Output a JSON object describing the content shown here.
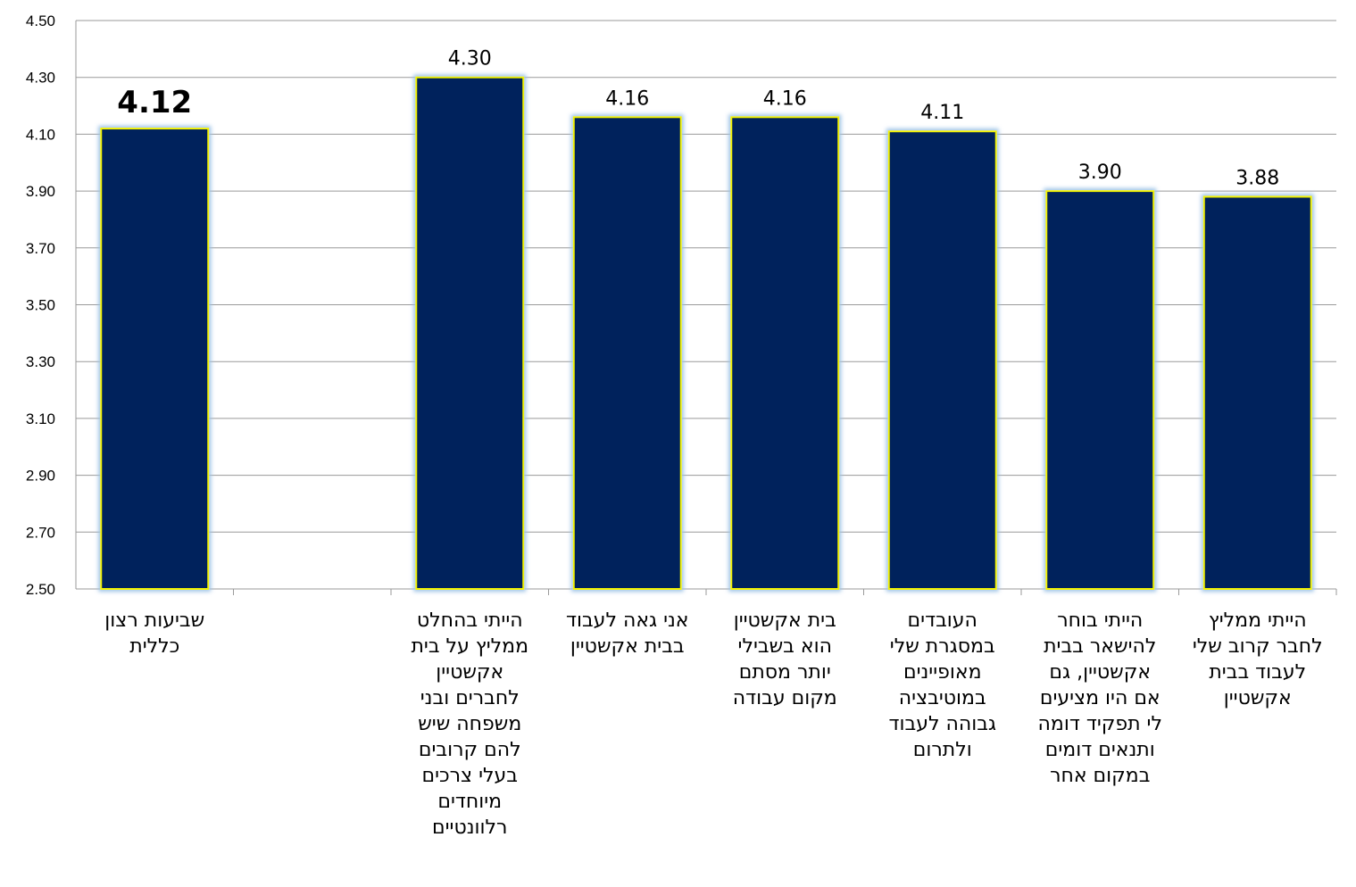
{
  "chart_data": {
    "type": "bar",
    "categories": [
      "שביעות רצון\nכללית",
      "",
      "הייתי בהחלט\nממליץ על בית\nאקשטיין\nלחברים ובני\nמשפחה שיש\nלהם קרובים\nבעלי צרכים\nמיוחדים\nרלוונטיים",
      "אני גאה לעבוד\nבבית אקשטיין",
      "בית אקשטיין\nהוא בשבילי\nיותר מסתם\nמקום עבודה",
      "העובדים\nבמסגרת שלי\nמאופיינים\nבמוטיבציה\nגבוהה לעבוד\nולתרום",
      "הייתי בוחר\nלהישאר בבית\nאקשטיין, גם\nאם היו מציעים\nלי תפקיד דומה\nותנאים דומים\nבמקום אחר",
      "הייתי ממליץ\nלחבר קרוב שלי\nלעבוד בבית\nאקשטיין"
    ],
    "values": [
      4.12,
      null,
      4.3,
      4.16,
      4.16,
      4.11,
      3.9,
      3.88
    ],
    "data_labels": [
      "4.12",
      "",
      "4.30",
      "4.16",
      "4.16",
      "4.11",
      "3.90",
      "3.88"
    ],
    "emphasized_index": 0,
    "ylim": [
      2.5,
      4.5
    ],
    "yticks": [
      "2.50",
      "2.70",
      "2.90",
      "3.10",
      "3.30",
      "3.50",
      "3.70",
      "3.90",
      "4.10",
      "4.30",
      "4.50"
    ],
    "ytick_values": [
      2.5,
      2.7,
      2.9,
      3.1,
      3.3,
      3.5,
      3.7,
      3.9,
      4.1,
      4.3,
      4.5
    ],
    "grid": true,
    "colors": {
      "bar_fill": "#00205b",
      "bar_border": "#f2f200",
      "bar_glow": "#9dc3e6",
      "gridline": "#9a9a9a"
    }
  }
}
